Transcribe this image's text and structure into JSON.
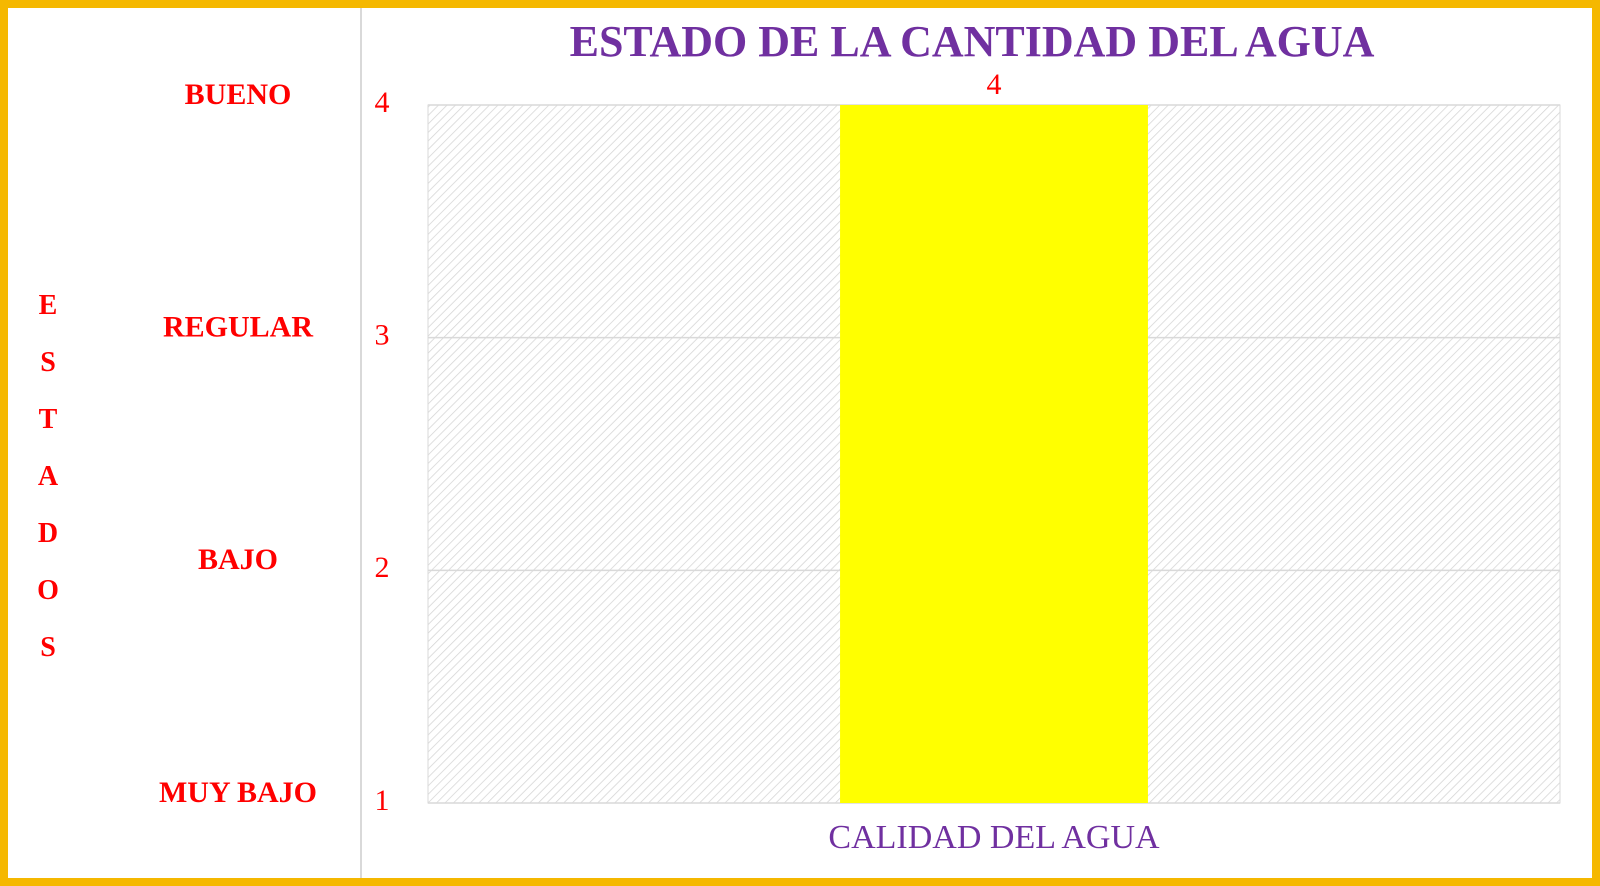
{
  "chart_data": {
    "type": "bar",
    "title": "ESTADO DE LA CANTIDAD DEL AGUA",
    "ylabel": "ESTADOS",
    "state_labels": [
      "MUY BAJO",
      "BAJO",
      "REGULAR",
      "BUENO"
    ],
    "categories": [
      "CALIDAD DEL AGUA"
    ],
    "values": [
      4
    ],
    "color": "#ffff00",
    "ylim": [
      1,
      4
    ],
    "yticks": [
      1,
      2,
      3,
      4
    ],
    "grid": true
  }
}
